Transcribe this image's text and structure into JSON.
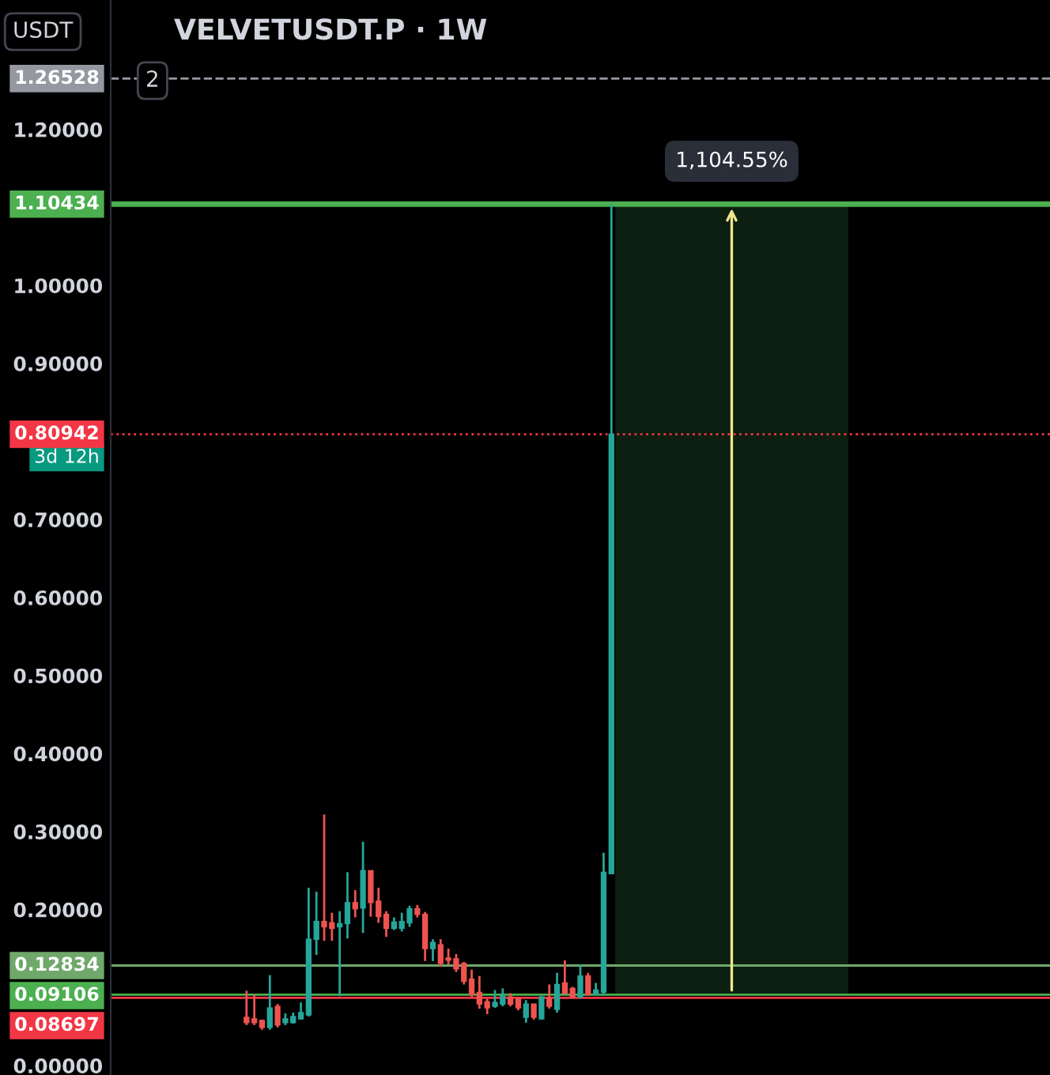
{
  "chart_data": {
    "type": "candlestick",
    "title": "VELVETUSDT.P · 1W",
    "categories": [
      null,
      null,
      null,
      null,
      null,
      null,
      null,
      null,
      null,
      null,
      null,
      null,
      null,
      null,
      null,
      null,
      null,
      null,
      null,
      null,
      null,
      null,
      null,
      null,
      null,
      null,
      null,
      null,
      null,
      null,
      null,
      null,
      null,
      null,
      null,
      null,
      null,
      null,
      null,
      null,
      null,
      null,
      null,
      null,
      null,
      null,
      null,
      null,
      null,
      null,
      null,
      null,
      null,
      null,
      null,
      null,
      null,
      null,
      null,
      null,
      null,
      null,
      null,
      null,
      null,
      null,
      null,
      null,
      null,
      null,
      null,
      null,
      null,
      null,
      null,
      null,
      null,
      null,
      null,
      null,
      null,
      null,
      null,
      null,
      null,
      null,
      null,
      null,
      null,
      null,
      null,
      null,
      null,
      null,
      null,
      null,
      null,
      null,
      null,
      null,
      null,
      null,
      null,
      null,
      null,
      null,
      null,
      null,
      null,
      null,
      null,
      null,
      null,
      null,
      null,
      null,
      null,
      null,
      null,
      null,
      null
    ],
    "ohlc": [
      null,
      null,
      null,
      null,
      null,
      null,
      null,
      null,
      null,
      null,
      null,
      null,
      null,
      null,
      null,
      null,
      null,
      [
        0.062,
        0.096,
        0.052,
        0.055
      ],
      [
        0.06,
        0.091,
        0.052,
        0.055
      ],
      [
        0.058,
        0.059,
        0.046,
        0.049
      ],
      [
        0.049,
        0.116,
        0.046,
        0.074
      ],
      [
        0.076,
        0.079,
        0.049,
        0.052
      ],
      [
        0.055,
        0.067,
        0.052,
        0.06
      ],
      [
        0.055,
        0.068,
        0.054,
        0.063
      ],
      [
        0.06,
        0.081,
        0.059,
        0.068
      ],
      [
        0.065,
        0.228,
        0.063,
        0.162
      ],
      [
        0.162,
        0.223,
        0.142,
        0.185
      ],
      [
        0.185,
        0.322,
        0.16,
        0.178
      ],
      [
        0.183,
        0.196,
        0.16,
        0.176
      ],
      [
        0.178,
        0.198,
        0.089,
        0.182
      ],
      [
        0.182,
        0.248,
        0.163,
        0.209
      ],
      [
        0.209,
        0.225,
        0.19,
        0.201
      ],
      [
        0.202,
        0.287,
        0.17,
        0.25
      ],
      [
        0.25,
        0.25,
        0.191,
        0.209
      ],
      [
        0.211,
        0.228,
        0.183,
        0.191
      ],
      [
        0.194,
        0.198,
        0.165,
        0.176
      ],
      [
        0.176,
        0.19,
        0.174,
        0.184
      ],
      [
        0.176,
        0.196,
        0.172,
        0.185
      ],
      [
        0.183,
        0.205,
        0.178,
        0.201
      ],
      [
        0.201,
        0.206,
        0.19,
        0.194
      ],
      [
        0.194,
        0.197,
        0.134,
        0.15
      ],
      [
        0.15,
        0.162,
        0.134,
        0.158
      ],
      [
        0.155,
        0.162,
        0.127,
        0.131
      ],
      [
        0.138,
        0.15,
        0.13,
        0.135
      ],
      [
        0.137,
        0.143,
        0.12,
        0.124
      ],
      [
        0.131,
        0.133,
        0.104,
        0.108
      ],
      [
        0.111,
        0.123,
        0.088,
        0.091
      ],
      [
        0.094,
        0.115,
        0.073,
        0.079
      ],
      [
        0.082,
        0.086,
        0.066,
        0.074
      ],
      [
        0.076,
        0.097,
        0.074,
        0.081
      ],
      [
        0.079,
        0.099,
        0.076,
        0.089
      ],
      [
        0.088,
        0.093,
        0.076,
        0.079
      ],
      [
        0.086,
        0.088,
        0.071,
        0.074
      ],
      [
        0.062,
        0.084,
        0.055,
        0.079
      ],
      [
        0.079,
        0.079,
        0.059,
        0.062
      ],
      [
        0.06,
        0.089,
        0.059,
        0.088
      ],
      [
        0.086,
        0.104,
        0.073,
        0.076
      ],
      [
        0.072,
        0.119,
        0.068,
        0.104
      ],
      [
        0.106,
        0.135,
        0.091,
        0.093
      ],
      [
        0.099,
        0.101,
        0.086,
        0.088
      ],
      [
        0.088,
        0.13,
        0.086,
        0.115
      ],
      [
        0.115,
        0.119,
        0.09,
        0.091
      ],
      [
        0.091,
        0.106,
        0.09,
        0.097
      ],
      [
        0.094,
        0.273,
        0.09,
        0.248
      ],
      [
        0.246,
        1.10434,
        0.246,
        0.80942
      ],
      null,
      null,
      null,
      null,
      null,
      null,
      null,
      null,
      null,
      null,
      null,
      null,
      null,
      null,
      null,
      null,
      null,
      null,
      null,
      null,
      null,
      null,
      null,
      null,
      null,
      null,
      null,
      null,
      null,
      null,
      null,
      null,
      null,
      null,
      null,
      null,
      null,
      null,
      null,
      null,
      null,
      null,
      null,
      null,
      null,
      null,
      null,
      null,
      null,
      null,
      null,
      null,
      null,
      null,
      null,
      null
    ],
    "colors": [
      null,
      null,
      null,
      null,
      null,
      null,
      null,
      null,
      null,
      null,
      null,
      null,
      null,
      null,
      null,
      null,
      null,
      "#ef5350",
      "#ef5350",
      "#ef5350",
      "#26a69a",
      "#ef5350",
      "#26a69a",
      "#26a69a",
      "#26a69a",
      "#26a69a",
      "#26a69a",
      "#ef5350",
      "#ef5350",
      "#26a69a",
      "#26a69a",
      "#ef5350",
      "#26a69a",
      "#ef5350",
      "#ef5350",
      "#ef5350",
      "#26a69a",
      "#26a69a",
      "#26a69a",
      "#ef5350",
      "#ef5350",
      "#26a69a",
      "#ef5350",
      "#ef5350",
      "#ef5350",
      "#ef5350",
      "#ef5350",
      "#ef5350",
      "#ef5350",
      "#26a69a",
      "#26a69a",
      "#ef5350",
      "#ef5350",
      "#26a69a",
      "#ef5350",
      "#26a69a",
      "#ef5350",
      "#26a69a",
      "#ef5350",
      "#ef5350",
      "#26a69a",
      "#ef5350",
      "#26a69a",
      "#26a69a",
      "#26a69a",
      null,
      null,
      null,
      null,
      null,
      null,
      null,
      null,
      null,
      null,
      null,
      null,
      null,
      null,
      null,
      null,
      null,
      null,
      null,
      null,
      null,
      null,
      null,
      null,
      null,
      null,
      null,
      null,
      null,
      null,
      null,
      null,
      null,
      null,
      null,
      null,
      null,
      null,
      null,
      null,
      null,
      null,
      null,
      null,
      null,
      null,
      null,
      null,
      null,
      null,
      null,
      null,
      null,
      null,
      null,
      null
    ],
    "ylim": [
      -0.012,
      1.366
    ],
    "yticks": [
      {
        "value": 0,
        "label": "0.00000"
      },
      {
        "value": 0.2,
        "label": "0.20000"
      },
      {
        "value": 0.3,
        "label": "0.30000"
      },
      {
        "value": 0.4,
        "label": "0.40000"
      },
      {
        "value": 0.5,
        "label": "0.50000"
      },
      {
        "value": 0.6,
        "label": "0.60000"
      },
      {
        "value": 0.7,
        "label": "0.70000"
      },
      {
        "value": 0.9,
        "label": "0.90000"
      },
      {
        "value": 1.0,
        "label": "1.00000"
      },
      {
        "value": 1.2,
        "label": "1.20000"
      }
    ],
    "tick_labels": "y",
    "grid": false,
    "ref_lines": [
      {
        "axis": "y",
        "value": 1.26528,
        "label": "1.26528",
        "color": "#9598a1",
        "line_style": "dashed"
      },
      {
        "axis": "y",
        "value": 1.10434,
        "label": "1.10434",
        "color": "#4caf50",
        "line_style": "solid"
      },
      {
        "axis": "y",
        "value": 0.80942,
        "label": "0.80942",
        "color": "#f23645",
        "line_style": "dotted"
      },
      {
        "axis": "y",
        "value": 0.12834,
        "label": "0.12834",
        "color": "#6fa86a",
        "line_style": "solid"
      },
      {
        "axis": "y",
        "value": 0.09106,
        "label": "0.09106",
        "color": "#4caf50",
        "line_style": "solid"
      },
      {
        "axis": "y",
        "value": 0.08697,
        "label": "0.08697",
        "color": "#f23645",
        "line_style": "solid"
      }
    ],
    "bands": [
      {
        "axis": "y",
        "from": 0.09106,
        "to": 1.10434,
        "color": "#0c1f10"
      }
    ],
    "annotations": [
      {
        "text": "1,104.55%",
        "y": 1.10434
      },
      "USDT",
      "2",
      "3d 12h"
    ]
  }
}
